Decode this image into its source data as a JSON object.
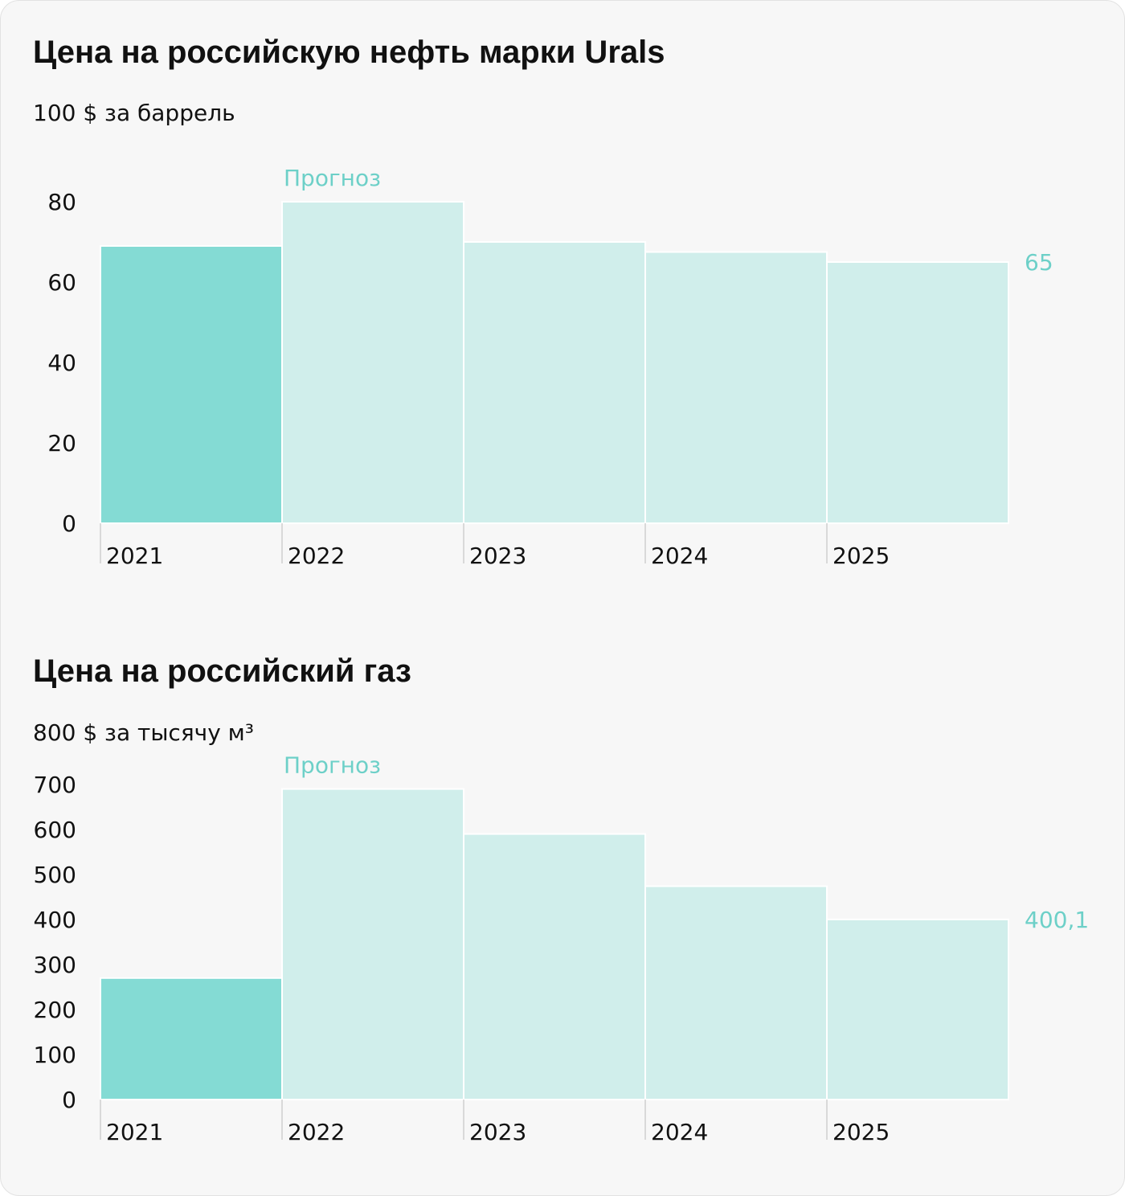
{
  "colors": {
    "actual": "#84dbd4",
    "forecast": "#d0eeeb",
    "accent_text": "#6dd0c8",
    "text": "#111111",
    "axis": "#cfcfcf"
  },
  "chart_data": [
    {
      "type": "bar",
      "title": "Цена на российскую нефть марки Urals",
      "unit_label": "100 $ за баррель",
      "categories": [
        "2021",
        "2022",
        "2023",
        "2024",
        "2025"
      ],
      "values": [
        69,
        80,
        70,
        67.5,
        65
      ],
      "value_kinds": [
        "actual",
        "forecast",
        "forecast",
        "forecast",
        "forecast"
      ],
      "yticks": [
        "80",
        "60",
        "40",
        "20",
        "0"
      ],
      "ylim": [
        0,
        100
      ],
      "annotation": "Прогноз",
      "last_value_label": "65"
    },
    {
      "type": "bar",
      "title": "Цена на российский газ",
      "unit_label": "800 $ за тысячу м³",
      "categories": [
        "2021",
        "2022",
        "2023",
        "2024",
        "2025"
      ],
      "values": [
        270,
        690,
        590,
        474,
        400.1
      ],
      "value_kinds": [
        "actual",
        "forecast",
        "forecast",
        "forecast",
        "forecast"
      ],
      "yticks": [
        "700",
        "600",
        "500",
        "400",
        "300",
        "200",
        "100",
        "0"
      ],
      "ylim": [
        0,
        800
      ],
      "annotation": "Прогноз",
      "last_value_label": "400,1"
    }
  ]
}
